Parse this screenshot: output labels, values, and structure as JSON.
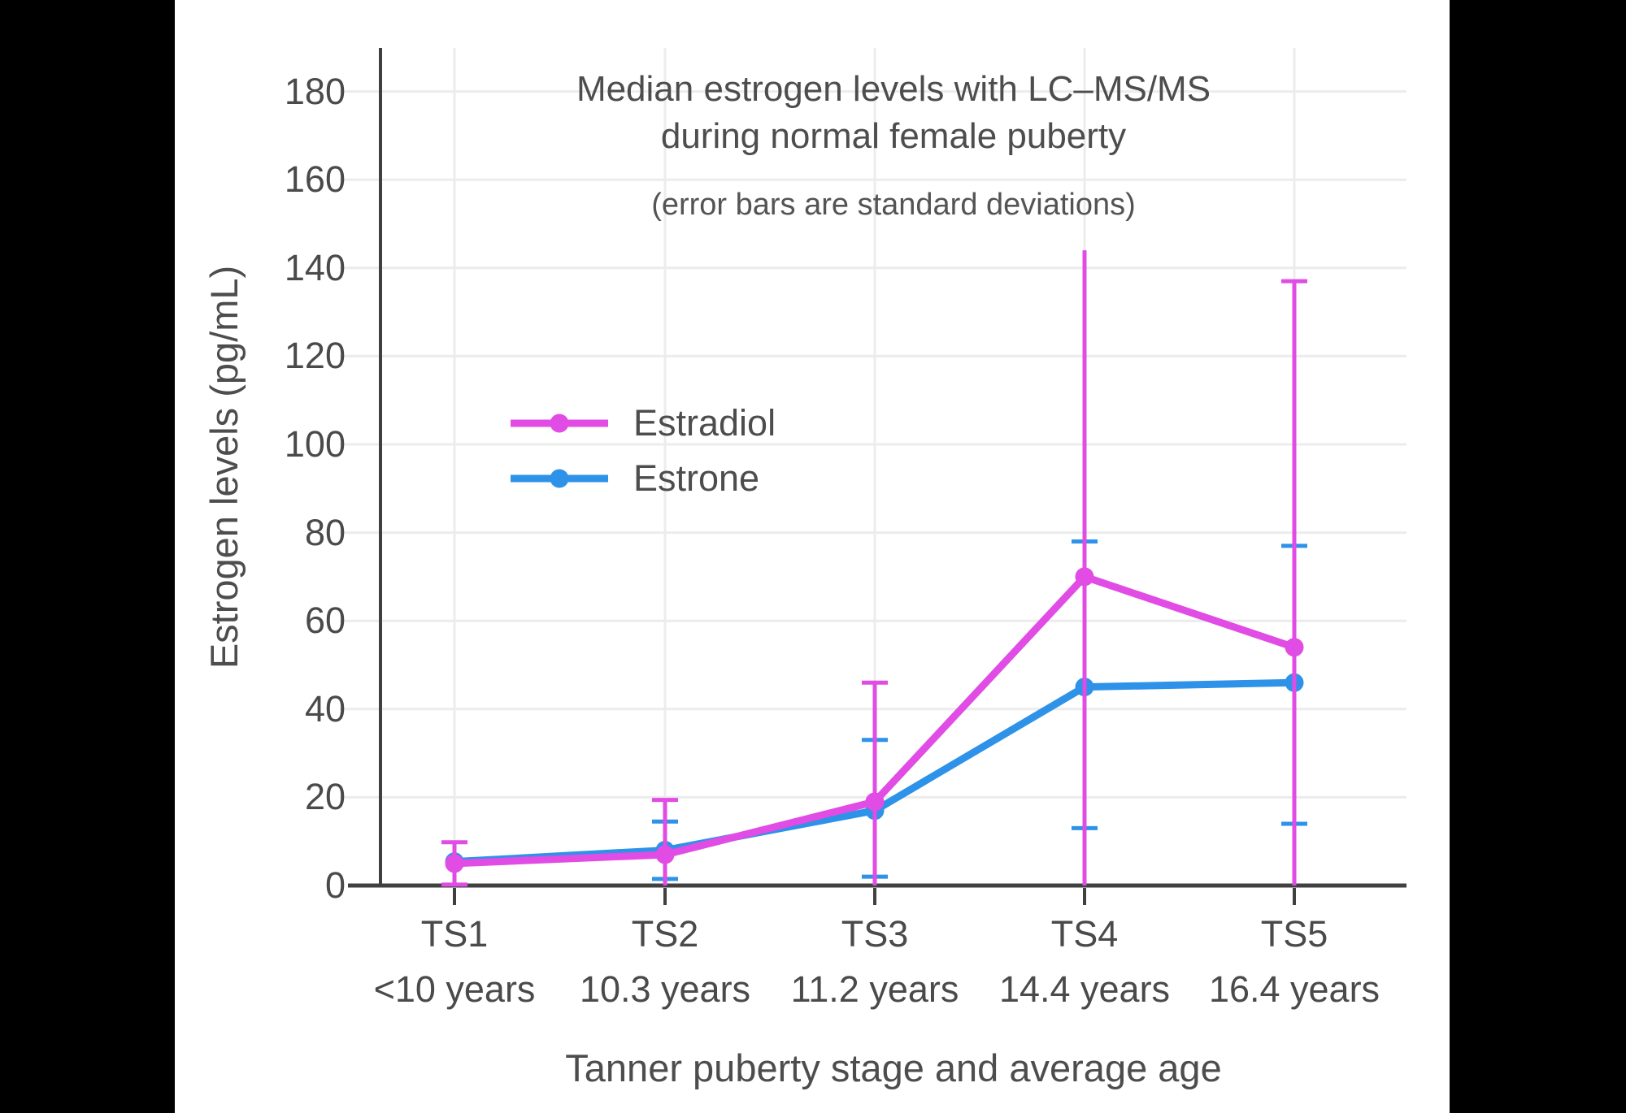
{
  "page": {
    "background": "#000000",
    "canvas_background": "#ffffff"
  },
  "chart_data": {
    "type": "line",
    "title_lines": [
      "Median estrogen levels with LC–MS/MS",
      "during normal female puberty"
    ],
    "subtitle": "(error bars are standard deviations)",
    "xlabel": "Tanner puberty stage and average age",
    "ylabel": "Estrogen levels (pg/mL)",
    "categories": [
      "TS1",
      "TS2",
      "TS3",
      "TS4",
      "TS5"
    ],
    "category_ages": [
      "<10 years",
      "10.3 years",
      "11.2 years",
      "14.4 years",
      "16.4 years"
    ],
    "y_axis": {
      "min": 0,
      "max": 190,
      "tick_step": 20,
      "tick_min": 0,
      "tick_max": 180
    },
    "grid": true,
    "legend": {
      "position": "inside-upper-left",
      "entries": [
        "Estradiol",
        "Estrone"
      ]
    },
    "series": [
      {
        "name": "Estradiol",
        "color": "#e04ce4",
        "values": [
          5,
          7,
          19,
          70,
          54
        ],
        "error_low": [
          0.2,
          0,
          0,
          0,
          0
        ],
        "error_high": [
          9.8,
          19.4,
          46,
          144,
          137
        ],
        "cap_low": [
          true,
          false,
          false,
          false,
          false
        ],
        "cap_high": [
          true,
          true,
          true,
          false,
          true
        ]
      },
      {
        "name": "Estrone",
        "color": "#2e92e8",
        "values": [
          5.4,
          8,
          17,
          45,
          46
        ],
        "error_low": [
          null,
          1.5,
          2,
          13,
          14
        ],
        "error_high": [
          null,
          14.5,
          33,
          78,
          77
        ],
        "cap_low": [
          false,
          true,
          true,
          true,
          true
        ],
        "cap_high": [
          false,
          true,
          true,
          true,
          true
        ]
      }
    ],
    "axis_color": "#404040",
    "grid_color": "#ececec",
    "text_color": "#4d4d4d"
  }
}
